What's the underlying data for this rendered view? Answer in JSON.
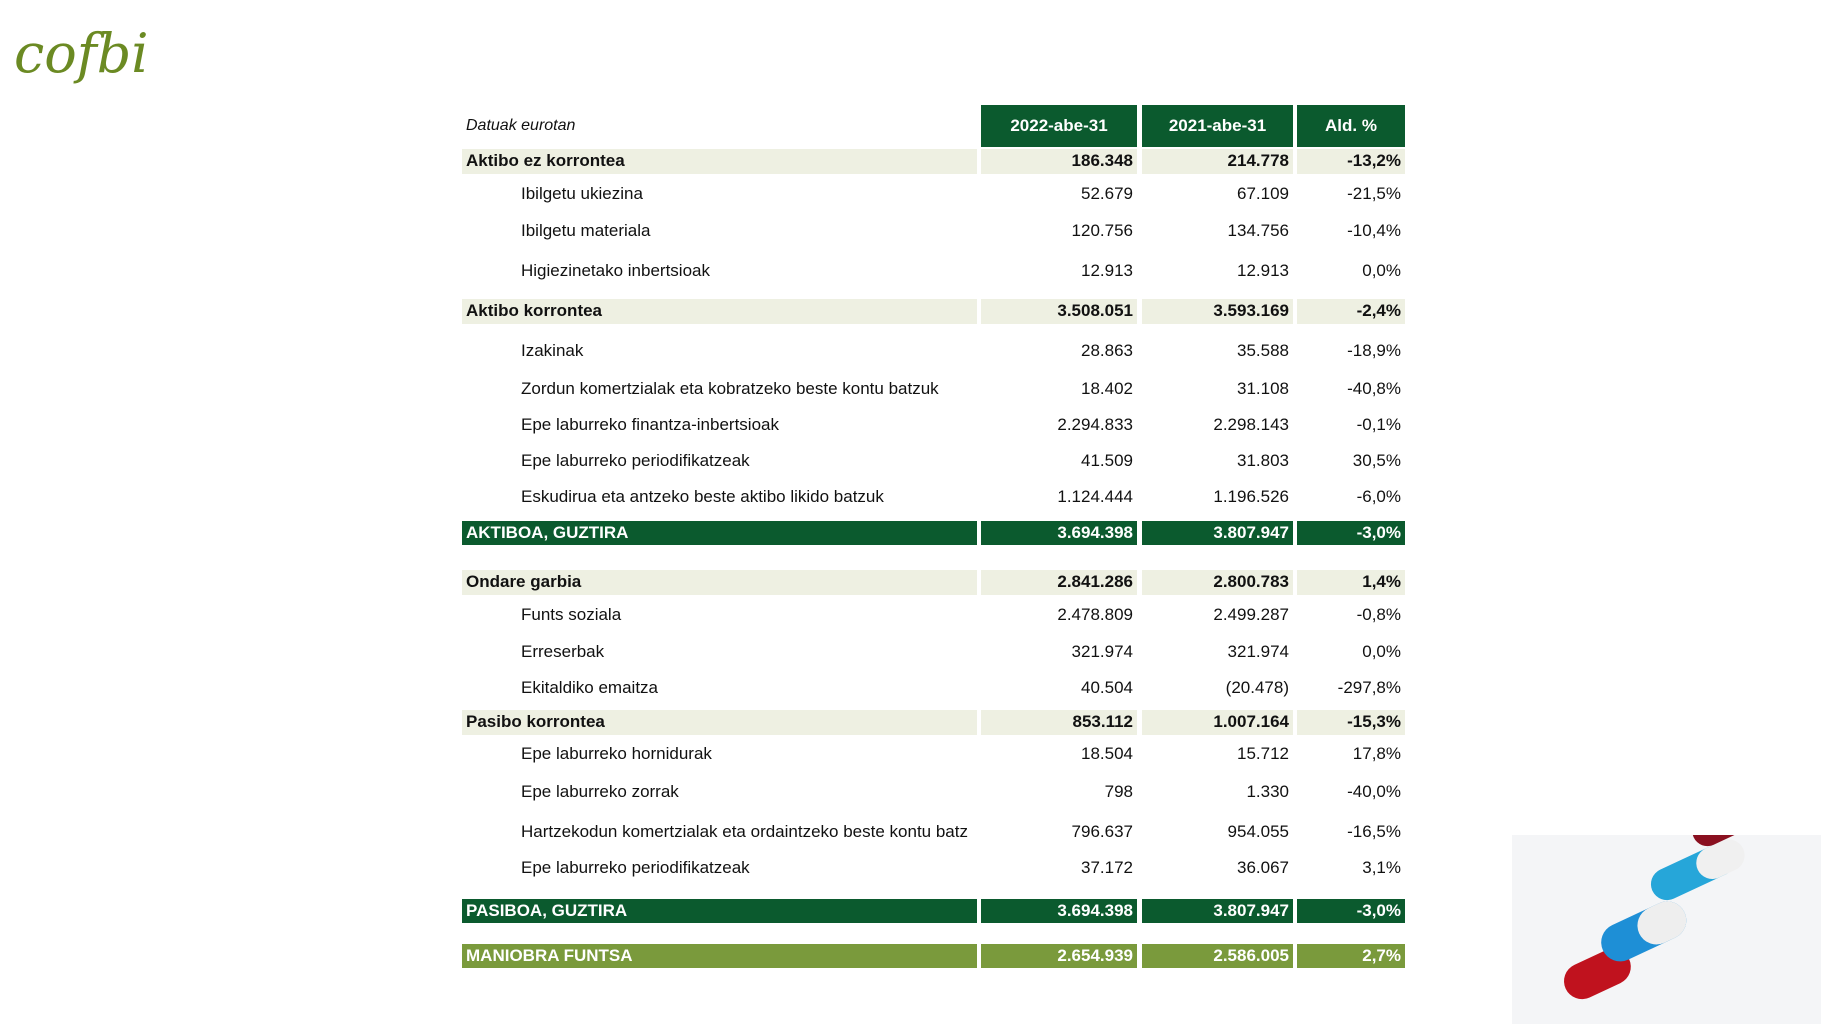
{
  "logo": "cofbi",
  "table": {
    "note": "Datuak eurotan",
    "columns": [
      "2022-abe-31",
      "2021-abe-31",
      "Ald. %"
    ],
    "rows": [
      {
        "kind": "section",
        "label": "Aktibo ez korrontea",
        "cells": [
          "186.348",
          "214.778",
          "-13,2%"
        ]
      },
      {
        "kind": "item",
        "label": "Ibilgetu ukiezina",
        "cells": [
          "52.679",
          "67.109",
          "-21,5%"
        ]
      },
      {
        "kind": "item",
        "label": "Ibilgetu materiala",
        "cells": [
          "120.756",
          "134.756",
          "-10,4%"
        ]
      },
      {
        "kind": "item",
        "label": "Higiezinetako inbertsioak",
        "cells": [
          "12.913",
          "12.913",
          "0,0%"
        ]
      },
      {
        "kind": "section",
        "label": "Aktibo korrontea",
        "cells": [
          "3.508.051",
          "3.593.169",
          "-2,4%"
        ]
      },
      {
        "kind": "item",
        "label": "Izakinak",
        "cells": [
          "28.863",
          "35.588",
          "-18,9%"
        ]
      },
      {
        "kind": "item",
        "label": "Zordun komertzialak eta kobratzeko beste kontu batzuk",
        "cells": [
          "18.402",
          "31.108",
          "-40,8%"
        ]
      },
      {
        "kind": "item",
        "label": "Epe laburreko finantza-inbertsioak",
        "cells": [
          "2.294.833",
          "2.298.143",
          "-0,1%"
        ]
      },
      {
        "kind": "item",
        "label": "Epe laburreko periodifikatzeak",
        "cells": [
          "41.509",
          "31.803",
          "30,5%"
        ]
      },
      {
        "kind": "item",
        "label": "Eskudirua eta antzeko beste aktibo likido batzuk",
        "cells": [
          "1.124.444",
          "1.196.526",
          "-6,0%"
        ]
      },
      {
        "kind": "total",
        "label": "AKTIBOA, GUZTIRA",
        "cells": [
          "3.694.398",
          "3.807.947",
          "-3,0%"
        ]
      },
      {
        "kind": "section",
        "label": "Ondare garbia",
        "cells": [
          "2.841.286",
          "2.800.783",
          "1,4%"
        ]
      },
      {
        "kind": "item",
        "label": "Funts soziala",
        "cells": [
          "2.478.809",
          "2.499.287",
          "-0,8%"
        ]
      },
      {
        "kind": "item",
        "label": "Erreserbak",
        "cells": [
          "321.974",
          "321.974",
          "0,0%"
        ]
      },
      {
        "kind": "item",
        "label": "Ekitaldiko emaitza",
        "cells": [
          "40.504",
          "(20.478)",
          "-297,8%"
        ]
      },
      {
        "kind": "section",
        "label": "Pasibo korrontea",
        "cells": [
          "853.112",
          "1.007.164",
          "-15,3%"
        ]
      },
      {
        "kind": "item",
        "label": "Epe laburreko hornidurak",
        "cells": [
          "18.504",
          "15.712",
          "17,8%"
        ]
      },
      {
        "kind": "item",
        "label": "Epe laburreko zorrak",
        "cells": [
          "798",
          "1.330",
          "-40,0%"
        ]
      },
      {
        "kind": "item",
        "label": "Hartzekodun komertzialak eta ordaintzeko beste kontu batz",
        "cells": [
          "796.637",
          "954.055",
          "-16,5%"
        ]
      },
      {
        "kind": "item",
        "label": "Epe laburreko periodifikatzeak",
        "cells": [
          "37.172",
          "36.067",
          "3,1%"
        ]
      },
      {
        "kind": "total",
        "label": "PASIBOA, GUZTIRA",
        "cells": [
          "3.694.398",
          "3.807.947",
          "-3,0%"
        ]
      },
      {
        "kind": "fund",
        "label": "MANIOBRA FUNTSA",
        "cells": [
          "2.654.939",
          "2.586.005",
          "2,7%"
        ]
      }
    ]
  }
}
